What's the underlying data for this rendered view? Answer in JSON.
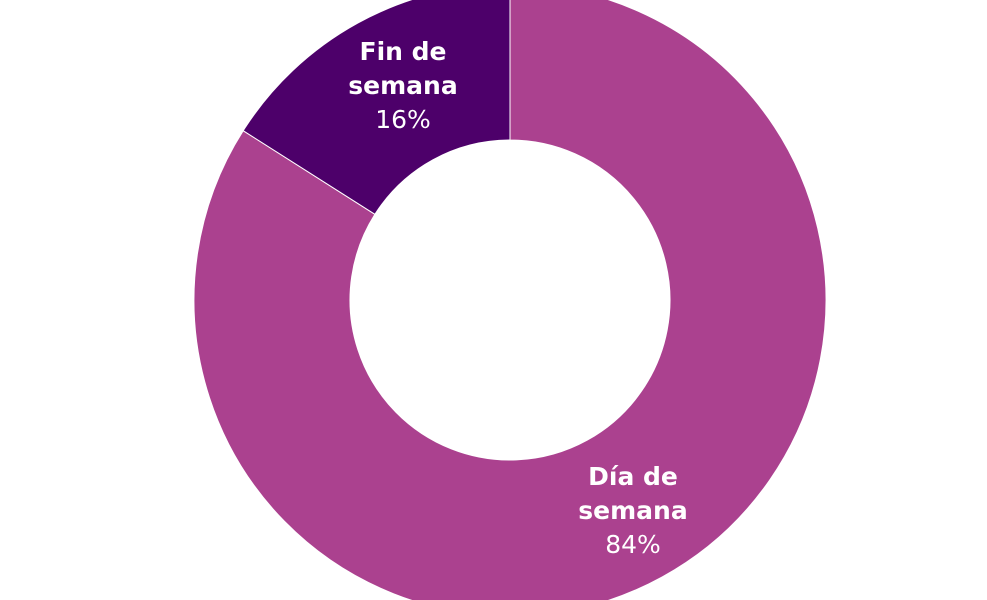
{
  "chart_data": {
    "type": "pie",
    "donut": true,
    "slices": [
      {
        "label_lines": [
          "Día de",
          "semana"
        ],
        "value": 84,
        "value_label": "84%",
        "color": "#ab418f"
      },
      {
        "label_lines": [
          "Fin de",
          "semana"
        ],
        "value": 16,
        "value_label": "16%",
        "color": "#4d006a"
      }
    ],
    "start": "top",
    "direction": "clockwise",
    "legend": "none",
    "separator_color": "#ffffff"
  }
}
